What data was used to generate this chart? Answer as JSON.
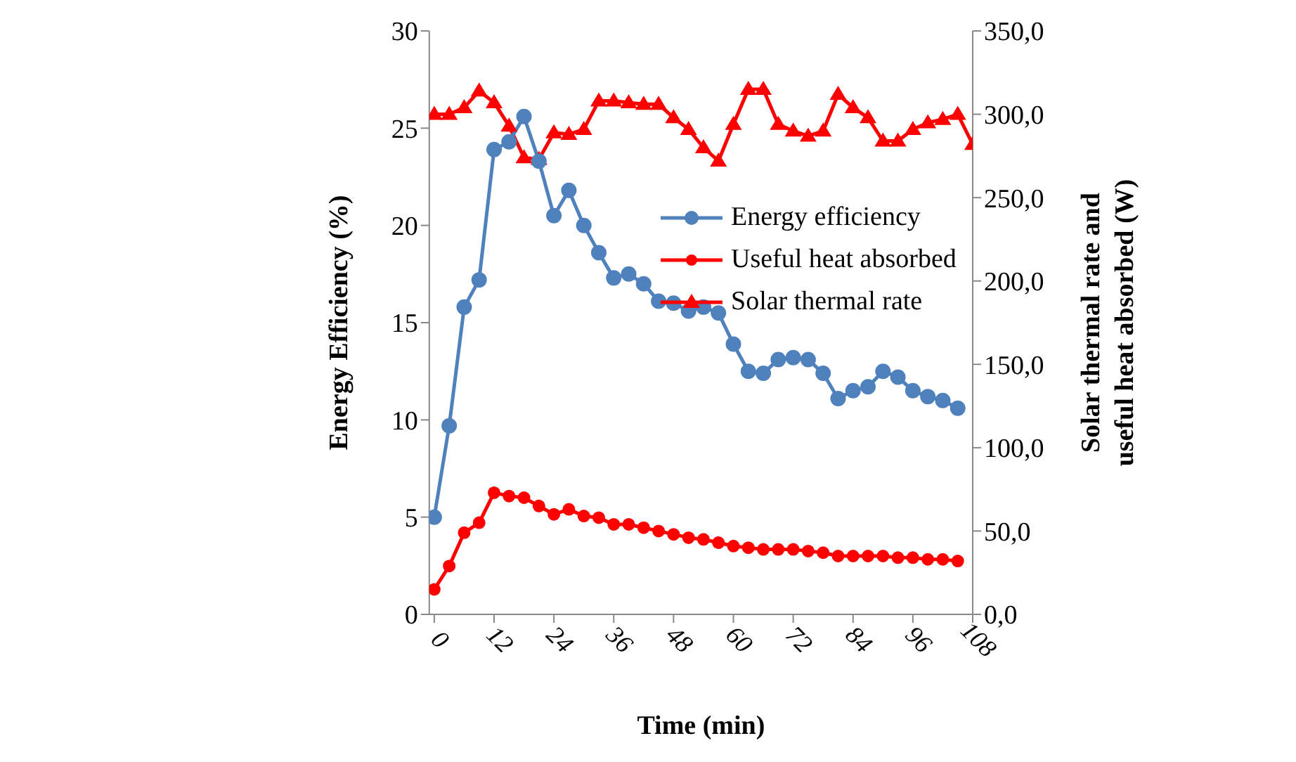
{
  "chart_data": {
    "type": "line",
    "xlabel": "Time (min)",
    "ylabel": "Energy Efficiency (%)",
    "y2label": "Solar thermal rate and useful heat absorbed (W)",
    "xlim": [
      -1,
      108
    ],
    "xticks": [
      0,
      12,
      24,
      36,
      48,
      60,
      72,
      84,
      96,
      108
    ],
    "ylim": [
      0,
      30
    ],
    "yticks": [
      0,
      5,
      10,
      15,
      20,
      25,
      30
    ],
    "y2lim": [
      0,
      350
    ],
    "y2ticks": [
      {
        "value": 0,
        "label": "0,0"
      },
      {
        "value": 50,
        "label": "50,0"
      },
      {
        "value": 100,
        "label": "100,0"
      },
      {
        "value": 150,
        "label": "150,0"
      },
      {
        "value": 200,
        "label": "200,0"
      },
      {
        "value": 250,
        "label": "250,0"
      },
      {
        "value": 300,
        "label": "300,0"
      },
      {
        "value": 350,
        "label": "350,0"
      }
    ],
    "legend": "right",
    "series": [
      {
        "name": "Energy efficiency",
        "color": "#4f81bd",
        "marker": "circle",
        "x": [
          0,
          3,
          6,
          9,
          12,
          15,
          18,
          21,
          24,
          27,
          30,
          33,
          36,
          39,
          42,
          45,
          48,
          51,
          54,
          57,
          60,
          63,
          66,
          69,
          72,
          75,
          78,
          81,
          84,
          87,
          90,
          93,
          96,
          99,
          102,
          105
        ],
        "values": [
          5.0,
          9.7,
          15.8,
          17.2,
          23.9,
          24.3,
          25.6,
          23.3,
          20.5,
          21.8,
          20.0,
          18.6,
          17.3,
          17.5,
          17.0,
          16.1,
          16.0,
          15.6,
          15.8,
          15.5,
          13.9,
          12.5,
          12.4,
          13.1,
          13.2,
          13.1,
          12.4,
          11.1,
          11.5,
          11.7,
          12.5,
          12.2,
          11.5,
          11.2,
          11.0,
          10.6
        ]
      },
      {
        "name": "Useful heat absorbed",
        "color": "#ff0000",
        "marker": "circle",
        "axis": "y2",
        "x": [
          0,
          3,
          6,
          9,
          12,
          15,
          18,
          21,
          24,
          27,
          30,
          33,
          36,
          39,
          42,
          45,
          48,
          51,
          54,
          57,
          60,
          63,
          66,
          69,
          72,
          75,
          78,
          81,
          84,
          87,
          90,
          93,
          96,
          99,
          102,
          105
        ],
        "values": [
          15,
          29,
          49,
          55,
          73,
          71,
          70,
          65,
          60,
          63,
          59,
          58,
          54,
          54,
          52,
          50,
          48,
          46,
          45,
          43,
          41,
          40,
          39,
          39,
          39,
          38,
          37,
          35,
          35,
          35,
          35,
          34,
          34,
          33,
          33,
          32
        ]
      },
      {
        "name": "Solar thermal rate",
        "color": "#ff0000",
        "marker": "triangle",
        "axis": "y2",
        "x": [
          0,
          3,
          6,
          9,
          12,
          15,
          18,
          21,
          24,
          27,
          30,
          33,
          36,
          39,
          42,
          45,
          48,
          51,
          54,
          57,
          60,
          63,
          66,
          69,
          72,
          75,
          78,
          81,
          84,
          87,
          90,
          93,
          96,
          99,
          102,
          105,
          108
        ],
        "values": [
          300,
          300,
          304,
          314,
          307,
          293,
          274,
          273,
          289,
          288,
          291,
          308,
          308,
          307,
          306,
          306,
          298,
          291,
          280,
          272,
          294,
          315,
          315,
          294,
          290,
          287,
          290,
          312,
          304,
          298,
          284,
          284,
          291,
          295,
          297,
          300,
          282
        ]
      }
    ]
  }
}
